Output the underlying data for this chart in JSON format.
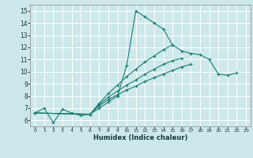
{
  "title": "",
  "xlabel": "Humidex (Indice chaleur)",
  "bg_color": "#cce8ea",
  "grid_color": "#ffffff",
  "line_color": "#1e7d72",
  "xlim": [
    -0.5,
    23.5
  ],
  "ylim": [
    5.5,
    15.5
  ],
  "xticks": [
    0,
    1,
    2,
    3,
    4,
    5,
    6,
    7,
    8,
    9,
    10,
    11,
    12,
    13,
    14,
    15,
    16,
    17,
    18,
    19,
    20,
    21,
    22,
    23
  ],
  "yticks": [
    6,
    7,
    8,
    9,
    10,
    11,
    12,
    13,
    14,
    15
  ],
  "lines": [
    {
      "x": [
        0,
        1,
        2,
        3,
        4,
        5,
        6,
        7,
        8,
        9,
        10,
        11,
        12,
        13,
        14,
        15,
        16,
        17,
        18,
        19,
        20,
        21,
        22
      ],
      "y": [
        6.6,
        7.0,
        5.8,
        6.9,
        6.6,
        6.4,
        6.5,
        7.0,
        7.5,
        8.0,
        10.5,
        15.0,
        14.5,
        14.0,
        13.5,
        12.2,
        11.7,
        11.5,
        11.4,
        11.0,
        9.8,
        9.7,
        9.9
      ]
    },
    {
      "x": [
        0,
        6,
        7,
        8,
        9,
        10,
        11,
        12,
        13,
        14,
        15,
        16,
        17,
        18,
        19,
        20,
        21,
        22,
        23
      ],
      "y": [
        6.6,
        6.5,
        7.4,
        8.2,
        8.9,
        9.6,
        10.2,
        10.8,
        11.3,
        11.8,
        12.2,
        null,
        null,
        null,
        null,
        null,
        null,
        null,
        null
      ]
    },
    {
      "x": [
        0,
        6,
        7,
        8,
        9,
        10,
        11,
        12,
        13,
        14,
        15,
        16,
        17,
        18,
        19,
        20,
        21,
        22,
        23
      ],
      "y": [
        6.6,
        6.5,
        7.3,
        7.9,
        8.4,
        8.9,
        9.3,
        9.8,
        10.2,
        10.6,
        10.9,
        11.1,
        null,
        null,
        null,
        null,
        null,
        null,
        null
      ]
    },
    {
      "x": [
        0,
        6,
        7,
        8,
        9,
        10,
        11,
        12,
        13,
        14,
        15,
        16,
        17,
        18,
        19,
        20,
        21,
        22,
        23
      ],
      "y": [
        6.6,
        6.5,
        7.2,
        7.7,
        8.1,
        8.5,
        8.8,
        9.2,
        9.5,
        9.8,
        10.1,
        10.4,
        10.6,
        null,
        null,
        null,
        null,
        null,
        null
      ]
    }
  ],
  "marker": "+"
}
